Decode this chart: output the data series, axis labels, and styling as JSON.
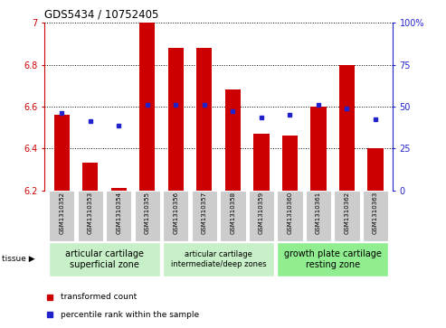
{
  "title": "GDS5434 / 10752405",
  "samples": [
    "GSM1310352",
    "GSM1310353",
    "GSM1310354",
    "GSM1310355",
    "GSM1310356",
    "GSM1310357",
    "GSM1310358",
    "GSM1310359",
    "GSM1310360",
    "GSM1310361",
    "GSM1310362",
    "GSM1310363"
  ],
  "red_values": [
    6.56,
    6.33,
    6.21,
    7.0,
    6.88,
    6.88,
    6.68,
    6.47,
    6.46,
    6.6,
    6.8,
    6.4
  ],
  "blue_values": [
    6.57,
    6.53,
    6.51,
    6.61,
    6.61,
    6.61,
    6.58,
    6.55,
    6.56,
    6.61,
    6.59,
    6.54
  ],
  "ylim_left": [
    6.2,
    7.0
  ],
  "ylim_right": [
    0,
    100
  ],
  "yticks_left": [
    6.2,
    6.4,
    6.6,
    6.8,
    7.0
  ],
  "yticks_right": [
    0,
    25,
    50,
    75,
    100
  ],
  "ytick_labels_left": [
    "6.2",
    "6.4",
    "6.6",
    "6.8",
    "7"
  ],
  "ytick_labels_right": [
    "0",
    "25",
    "50",
    "75",
    "100%"
  ],
  "baseline": 6.2,
  "bar_color": "#cc0000",
  "dot_color": "#2222cc",
  "background_bar": "#cccccc",
  "tissue_groups": [
    {
      "label": "articular cartilage\nsuperficial zone",
      "start": 0,
      "end": 3,
      "color": "#c8f0c8",
      "fontsize": 7
    },
    {
      "label": "articular cartilage\nintermediate/deep zones",
      "start": 4,
      "end": 7,
      "color": "#c8f0c8",
      "fontsize": 6
    },
    {
      "label": "growth plate cartilage\nresting zone",
      "start": 8,
      "end": 11,
      "color": "#90ee90",
      "fontsize": 7
    }
  ],
  "legend_red": "transformed count",
  "legend_blue": "percentile rank within the sample"
}
